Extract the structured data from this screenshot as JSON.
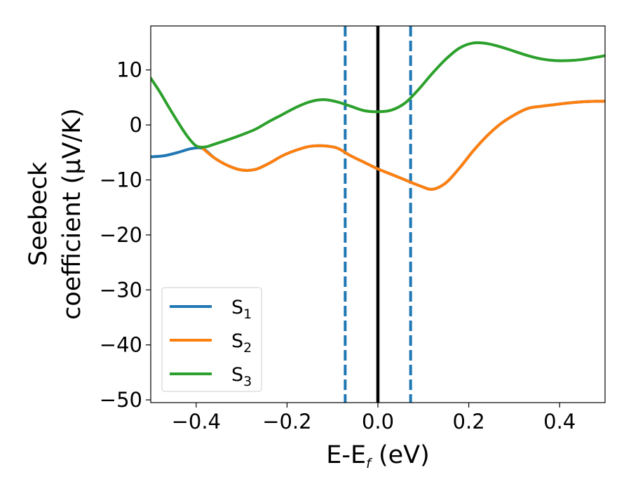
{
  "chart_data": {
    "type": "line",
    "xlabel": {
      "main": "E-E",
      "sub": "f",
      "tail": " (eV)"
    },
    "ylabel": {
      "line1": "Seebeck",
      "line2": "coefficient  (μV/K)"
    },
    "xlim": [
      -0.5,
      0.5
    ],
    "ylim": [
      -50.5,
      18
    ],
    "xticks": [
      -0.4,
      -0.2,
      0.0,
      0.2,
      0.4
    ],
    "xtick_labels": [
      "−0.4",
      "−0.2",
      "0.0",
      "0.2",
      "0.4"
    ],
    "yticks": [
      -50,
      -40,
      -30,
      -20,
      -10,
      0,
      10
    ],
    "ytick_labels": [
      "−50",
      "−40",
      "−30",
      "−20",
      "−10",
      "0",
      "10"
    ],
    "grid": false,
    "legend_position": "lower-left",
    "vlines": [
      {
        "x": -0.072,
        "style": "dashed",
        "color": "#1f77b4"
      },
      {
        "x": 0.0,
        "style": "dashed",
        "color": "#1f77b4"
      },
      {
        "x": 0.072,
        "style": "dashed",
        "color": "#1f77b4"
      },
      {
        "x": 0.0,
        "style": "solid",
        "color": "#000000"
      }
    ],
    "series": [
      {
        "name": "S",
        "sub": "1",
        "color": "#1f77b4",
        "points": [
          [
            -0.5,
            -5.8
          ],
          [
            -0.47,
            -5.6
          ],
          [
            -0.44,
            -5.0
          ],
          [
            -0.41,
            -4.3
          ],
          [
            -0.385,
            -4.3
          ],
          [
            -0.36,
            -6.0
          ],
          [
            -0.33,
            -7.4
          ],
          [
            -0.3,
            -8.2
          ],
          [
            -0.27,
            -8.1
          ],
          [
            -0.24,
            -7.0
          ],
          [
            -0.21,
            -5.6
          ],
          [
            -0.18,
            -4.6
          ],
          [
            -0.15,
            -3.9
          ],
          [
            -0.12,
            -3.8
          ],
          [
            -0.09,
            -4.2
          ],
          [
            -0.06,
            -5.6
          ],
          [
            -0.03,
            -6.8
          ],
          [
            0.0,
            -8.0
          ],
          [
            0.03,
            -9.0
          ],
          [
            0.06,
            -10.0
          ],
          [
            0.09,
            -11.0
          ],
          [
            0.12,
            -11.7
          ],
          [
            0.15,
            -10.5
          ],
          [
            0.18,
            -7.8
          ],
          [
            0.21,
            -4.7
          ],
          [
            0.24,
            -2.0
          ],
          [
            0.27,
            0.2
          ],
          [
            0.3,
            1.8
          ],
          [
            0.33,
            3.0
          ],
          [
            0.36,
            3.4
          ],
          [
            0.39,
            3.7
          ],
          [
            0.42,
            4.0
          ],
          [
            0.45,
            4.2
          ],
          [
            0.48,
            4.3
          ],
          [
            0.5,
            4.3
          ]
        ]
      },
      {
        "name": "S",
        "sub": "2",
        "color": "#ff7f0e",
        "points": [
          [
            -0.385,
            -4.3
          ],
          [
            -0.36,
            -6.0
          ],
          [
            -0.33,
            -7.4
          ],
          [
            -0.3,
            -8.2
          ],
          [
            -0.27,
            -8.1
          ],
          [
            -0.24,
            -7.0
          ],
          [
            -0.21,
            -5.6
          ],
          [
            -0.18,
            -4.6
          ],
          [
            -0.15,
            -3.9
          ],
          [
            -0.12,
            -3.8
          ],
          [
            -0.09,
            -4.2
          ],
          [
            -0.06,
            -5.6
          ],
          [
            -0.03,
            -6.8
          ],
          [
            0.0,
            -8.0
          ],
          [
            0.03,
            -9.0
          ],
          [
            0.06,
            -10.0
          ],
          [
            0.09,
            -11.0
          ],
          [
            0.12,
            -11.7
          ],
          [
            0.15,
            -10.5
          ],
          [
            0.18,
            -7.8
          ],
          [
            0.21,
            -4.7
          ],
          [
            0.24,
            -2.0
          ],
          [
            0.27,
            0.2
          ],
          [
            0.3,
            1.8
          ],
          [
            0.33,
            3.0
          ],
          [
            0.36,
            3.4
          ],
          [
            0.39,
            3.7
          ],
          [
            0.42,
            4.0
          ],
          [
            0.45,
            4.2
          ],
          [
            0.48,
            4.3
          ],
          [
            0.5,
            4.3
          ]
        ]
      },
      {
        "name": "S",
        "sub": "3",
        "color": "#2ca02c",
        "points": [
          [
            -0.5,
            8.5
          ],
          [
            -0.48,
            6.0
          ],
          [
            -0.46,
            3.2
          ],
          [
            -0.44,
            0.5
          ],
          [
            -0.42,
            -2.0
          ],
          [
            -0.4,
            -3.8
          ],
          [
            -0.38,
            -4.0
          ],
          [
            -0.36,
            -3.5
          ],
          [
            -0.33,
            -2.7
          ],
          [
            -0.3,
            -1.8
          ],
          [
            -0.27,
            -0.8
          ],
          [
            -0.24,
            0.6
          ],
          [
            -0.21,
            1.9
          ],
          [
            -0.18,
            3.2
          ],
          [
            -0.15,
            4.2
          ],
          [
            -0.12,
            4.6
          ],
          [
            -0.09,
            4.2
          ],
          [
            -0.06,
            3.4
          ],
          [
            -0.03,
            2.6
          ],
          [
            0.0,
            2.4
          ],
          [
            0.03,
            2.7
          ],
          [
            0.06,
            4.0
          ],
          [
            0.09,
            6.5
          ],
          [
            0.12,
            9.4
          ],
          [
            0.15,
            12.0
          ],
          [
            0.18,
            14.0
          ],
          [
            0.21,
            14.9
          ],
          [
            0.24,
            14.8
          ],
          [
            0.27,
            14.2
          ],
          [
            0.3,
            13.4
          ],
          [
            0.33,
            12.6
          ],
          [
            0.36,
            12.0
          ],
          [
            0.39,
            11.7
          ],
          [
            0.42,
            11.7
          ],
          [
            0.45,
            11.9
          ],
          [
            0.48,
            12.3
          ],
          [
            0.5,
            12.6
          ]
        ]
      }
    ]
  }
}
